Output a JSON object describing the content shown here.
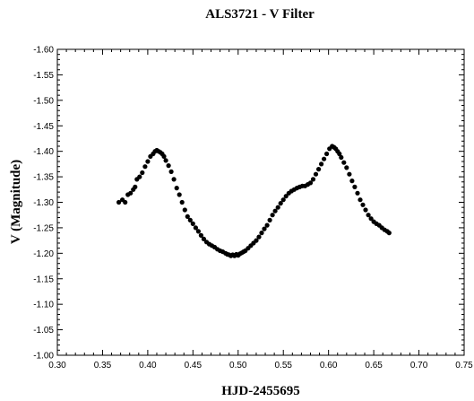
{
  "chart_data": {
    "type": "scatter",
    "title": "ALS3721 - V Filter",
    "xlabel": "HJD-2455695",
    "ylabel": "V (Magnitude)",
    "xlim": [
      0.3,
      0.75
    ],
    "ylim": [
      -1.6,
      -1.0
    ],
    "y_inverted": true,
    "grid": false,
    "marker_color": "#000000",
    "x_ticks": [
      "0.30",
      "0.35",
      "0.40",
      "0.45",
      "0.50",
      "0.55",
      "0.60",
      "0.65",
      "0.70",
      "0.75"
    ],
    "y_ticks": [
      "-1.60",
      "-1.55",
      "-1.50",
      "-1.45",
      "-1.40",
      "-1.35",
      "-1.30",
      "-1.25",
      "-1.20",
      "-1.15",
      "-1.10",
      "-1.05",
      "-1.00"
    ],
    "series": [
      {
        "x": [
          0.368,
          0.372,
          0.375,
          0.378,
          0.381,
          0.384,
          0.386,
          0.388,
          0.391,
          0.394,
          0.397,
          0.4,
          0.403,
          0.406,
          0.408,
          0.41,
          0.412,
          0.414,
          0.416,
          0.418,
          0.42,
          0.423,
          0.426,
          0.429,
          0.432,
          0.435,
          0.438,
          0.441,
          0.444,
          0.447,
          0.45,
          0.453,
          0.456,
          0.459,
          0.462,
          0.465,
          0.468,
          0.471,
          0.474,
          0.477,
          0.48,
          0.483,
          0.486,
          0.488,
          0.49,
          0.492,
          0.494,
          0.496,
          0.498,
          0.5,
          0.502,
          0.504,
          0.506,
          0.508,
          0.511,
          0.514,
          0.517,
          0.52,
          0.523,
          0.526,
          0.529,
          0.532,
          0.535,
          0.538,
          0.541,
          0.544,
          0.547,
          0.55,
          0.553,
          0.556,
          0.559,
          0.562,
          0.565,
          0.568,
          0.571,
          0.574,
          0.577,
          0.58,
          0.583,
          0.586,
          0.589,
          0.592,
          0.595,
          0.598,
          0.601,
          0.604,
          0.606,
          0.608,
          0.61,
          0.612,
          0.614,
          0.617,
          0.62,
          0.623,
          0.626,
          0.629,
          0.632,
          0.635,
          0.638,
          0.641,
          0.644,
          0.647,
          0.65,
          0.653,
          0.656,
          0.659,
          0.662,
          0.665,
          0.667
        ],
        "y": [
          -1.3,
          -1.305,
          -1.3,
          -1.315,
          -1.318,
          -1.325,
          -1.33,
          -1.345,
          -1.35,
          -1.358,
          -1.37,
          -1.38,
          -1.39,
          -1.395,
          -1.4,
          -1.402,
          -1.4,
          -1.398,
          -1.395,
          -1.39,
          -1.382,
          -1.372,
          -1.36,
          -1.345,
          -1.328,
          -1.315,
          -1.3,
          -1.285,
          -1.272,
          -1.265,
          -1.258,
          -1.25,
          -1.243,
          -1.235,
          -1.228,
          -1.222,
          -1.218,
          -1.215,
          -1.212,
          -1.208,
          -1.205,
          -1.203,
          -1.2,
          -1.198,
          -1.197,
          -1.195,
          -1.197,
          -1.195,
          -1.198,
          -1.196,
          -1.199,
          -1.201,
          -1.203,
          -1.205,
          -1.21,
          -1.215,
          -1.22,
          -1.225,
          -1.232,
          -1.24,
          -1.248,
          -1.255,
          -1.265,
          -1.275,
          -1.283,
          -1.29,
          -1.298,
          -1.305,
          -1.312,
          -1.318,
          -1.322,
          -1.325,
          -1.328,
          -1.33,
          -1.332,
          -1.332,
          -1.335,
          -1.338,
          -1.345,
          -1.355,
          -1.365,
          -1.375,
          -1.385,
          -1.395,
          -1.405,
          -1.41,
          -1.408,
          -1.405,
          -1.4,
          -1.395,
          -1.388,
          -1.378,
          -1.368,
          -1.355,
          -1.342,
          -1.33,
          -1.318,
          -1.305,
          -1.295,
          -1.285,
          -1.275,
          -1.268,
          -1.262,
          -1.258,
          -1.255,
          -1.25,
          -1.246,
          -1.243,
          -1.24
        ]
      }
    ]
  }
}
